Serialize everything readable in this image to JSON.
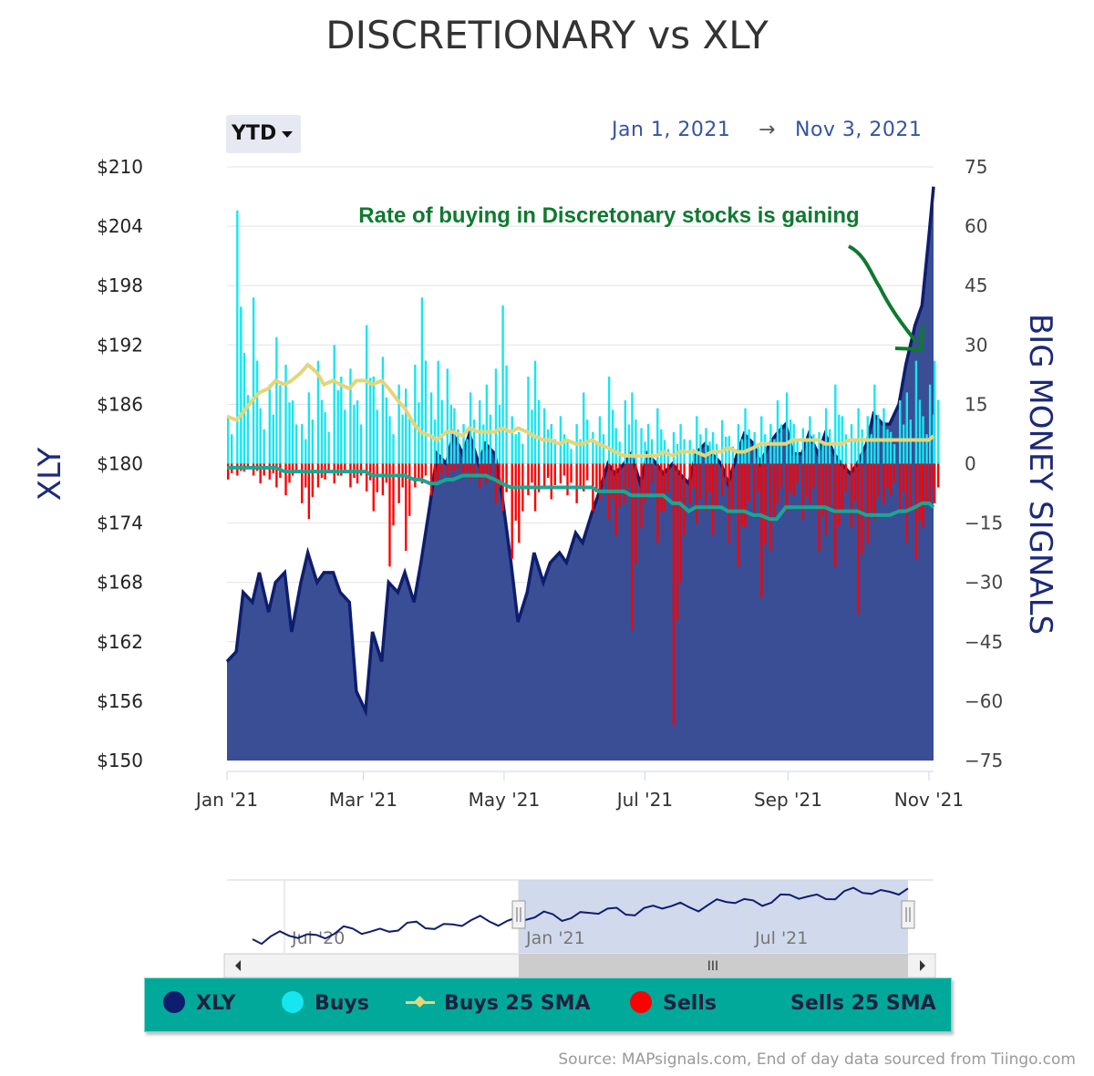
{
  "title": "DISCRETIONARY vs XLY",
  "range_button": {
    "label": "YTD"
  },
  "date_range": {
    "from": "Jan 1, 2021",
    "arrow": "→",
    "to": "Nov 3, 2021"
  },
  "annotation": "Rate of buying in Discretonary stocks is gaining",
  "navigator": {
    "labels": [
      "Jul '20",
      "Jan '21",
      "Jul '21"
    ],
    "scroll_label": "III"
  },
  "legend": [
    {
      "name": "XLY",
      "color": "#0f1d6e",
      "marker": "dot"
    },
    {
      "name": "Buys",
      "color": "#16e6f0",
      "marker": "dot"
    },
    {
      "name": "Buys 25 SMA",
      "color": "#e5d57a",
      "marker": "line"
    },
    {
      "name": "Sells",
      "color": "#ff0000",
      "marker": "dot"
    },
    {
      "name": "Sells 25 SMA",
      "color": "#1aa791",
      "marker": "none"
    }
  ],
  "source": "Source: MAPsignals.com, End of day data sourced from Tiingo.com",
  "chart_data": {
    "type": "area",
    "x_axis": {
      "ticks": [
        "Jan '21",
        "Mar '21",
        "May '21",
        "Jul '21",
        "Sep '21",
        "Nov '21"
      ],
      "range": [
        "2021-01-01",
        "2021-11-03"
      ]
    },
    "y_left": {
      "title": "XLY",
      "min": 150,
      "max": 210,
      "ticks": [
        "$210",
        "$204",
        "$198",
        "$192",
        "$186",
        "$180",
        "$174",
        "$168",
        "$162",
        "$156",
        "$150"
      ]
    },
    "y_right": {
      "title": "BIG MONEY SIGNALS",
      "min": -75,
      "max": 75,
      "ticks": [
        "75",
        "60",
        "45",
        "30",
        "15",
        "0",
        "−15",
        "−30",
        "−45",
        "−60",
        "−75"
      ]
    },
    "grid": true,
    "legend_position": "bottom",
    "series": [
      {
        "name": "XLY",
        "type": "area",
        "axis": "left",
        "color": "#0f1d6e",
        "fill": "#3a4e96",
        "x": [
          "2021-01-01",
          "2021-01-05",
          "2021-01-08",
          "2021-01-12",
          "2021-01-15",
          "2021-01-19",
          "2021-01-22",
          "2021-01-26",
          "2021-01-29",
          "2021-02-02",
          "2021-02-05",
          "2021-02-09",
          "2021-02-12",
          "2021-02-16",
          "2021-02-19",
          "2021-02-23",
          "2021-02-26",
          "2021-03-02",
          "2021-03-05",
          "2021-03-09",
          "2021-03-12",
          "2021-03-16",
          "2021-03-19",
          "2021-03-23",
          "2021-03-26",
          "2021-03-30",
          "2021-04-02",
          "2021-04-06",
          "2021-04-09",
          "2021-04-13",
          "2021-04-16",
          "2021-04-20",
          "2021-04-23",
          "2021-04-27",
          "2021-04-30",
          "2021-05-04",
          "2021-05-07",
          "2021-05-11",
          "2021-05-14",
          "2021-05-18",
          "2021-05-21",
          "2021-05-25",
          "2021-05-28",
          "2021-06-01",
          "2021-06-04",
          "2021-06-08",
          "2021-06-11",
          "2021-06-15",
          "2021-06-18",
          "2021-06-22",
          "2021-06-25",
          "2021-06-29",
          "2021-07-02",
          "2021-07-06",
          "2021-07-09",
          "2021-07-13",
          "2021-07-16",
          "2021-07-20",
          "2021-07-23",
          "2021-07-27",
          "2021-07-30",
          "2021-08-03",
          "2021-08-06",
          "2021-08-10",
          "2021-08-13",
          "2021-08-17",
          "2021-08-20",
          "2021-08-24",
          "2021-08-27",
          "2021-08-31",
          "2021-09-03",
          "2021-09-07",
          "2021-09-10",
          "2021-09-14",
          "2021-09-17",
          "2021-09-21",
          "2021-09-24",
          "2021-09-28",
          "2021-10-01",
          "2021-10-05",
          "2021-10-08",
          "2021-10-12",
          "2021-10-15",
          "2021-10-19",
          "2021-10-22",
          "2021-10-26",
          "2021-10-29",
          "2021-11-01",
          "2021-11-03"
        ],
        "values": [
          160,
          161,
          167,
          166,
          169,
          165,
          168,
          169,
          163,
          168,
          171,
          168,
          169,
          169,
          167,
          166,
          157,
          155,
          163,
          160,
          168,
          167,
          169,
          166,
          170,
          176,
          181,
          180,
          183,
          181,
          183,
          180,
          182,
          181,
          177,
          170,
          164,
          167,
          171,
          168,
          170,
          171,
          170,
          173,
          172,
          175,
          177,
          180,
          179,
          180,
          181,
          178,
          181,
          180,
          179,
          180,
          179,
          178,
          181,
          182,
          181,
          180,
          178,
          181,
          183,
          182,
          180,
          182,
          183,
          184,
          181,
          181,
          183,
          181,
          183,
          181,
          180,
          179,
          180,
          182,
          185,
          184,
          184,
          186,
          190,
          194,
          196,
          203,
          208
        ]
      },
      {
        "name": "Buys",
        "type": "column",
        "axis": "right",
        "color": "#16e6f0",
        "values": [
          12,
          64,
          28,
          42,
          14,
          20,
          32,
          25,
          16,
          10,
          18,
          26,
          13,
          30,
          22,
          24,
          16,
          35,
          22,
          27,
          12,
          20,
          19,
          25,
          42,
          18,
          26,
          24,
          14,
          10,
          18,
          16,
          20,
          24,
          40,
          12,
          8,
          22,
          26,
          14,
          10,
          12,
          6,
          10,
          18,
          8,
          12,
          22,
          9,
          16,
          18,
          9,
          10,
          14,
          6,
          8,
          10,
          6,
          12,
          9,
          8,
          11,
          7,
          10,
          14,
          8,
          12,
          10,
          16,
          18,
          10,
          9,
          12,
          8,
          14,
          20,
          12,
          10,
          14,
          12,
          20,
          14,
          8,
          16,
          18,
          26,
          12,
          20,
          26
        ]
      },
      {
        "name": "Buys 25 SMA",
        "type": "line",
        "axis": "right",
        "color": "#e5d57a",
        "values": [
          12,
          11,
          13,
          16,
          18,
          19,
          21,
          20,
          21,
          23,
          25,
          23,
          20,
          21,
          20,
          19,
          21,
          21,
          20,
          21,
          19,
          16,
          14,
          10,
          8,
          7,
          6,
          8,
          8,
          7,
          9,
          8,
          8,
          8,
          9,
          8,
          9,
          8,
          7,
          6,
          6,
          5,
          6,
          5,
          5,
          6,
          5,
          4,
          3,
          2,
          2,
          2,
          2,
          2,
          3,
          2,
          3,
          3,
          3,
          2,
          3,
          3,
          4,
          3,
          3,
          4,
          5,
          5,
          5,
          5,
          6,
          6,
          6,
          6,
          5,
          5,
          5,
          6,
          6,
          6,
          6,
          6,
          6,
          6,
          6,
          6,
          6,
          6,
          7
        ]
      },
      {
        "name": "Sells",
        "type": "column",
        "axis": "right",
        "color": "#ff0000",
        "values": [
          -4,
          -3,
          -2,
          -3,
          -5,
          -4,
          -6,
          -8,
          -3,
          -10,
          -14,
          -6,
          -4,
          -5,
          -3,
          -6,
          -5,
          -7,
          -12,
          -8,
          -26,
          -10,
          -22,
          -6,
          -5,
          -8,
          -4,
          -3,
          -2,
          -3,
          -4,
          -6,
          -5,
          -10,
          -12,
          -24,
          -20,
          -8,
          -12,
          -6,
          -9,
          -5,
          -8,
          -10,
          -7,
          -12,
          -9,
          -14,
          -18,
          -10,
          -42,
          -16,
          -8,
          -20,
          -12,
          -66,
          -30,
          -10,
          -15,
          -12,
          -18,
          -8,
          -20,
          -26,
          -16,
          -12,
          -34,
          -22,
          -10,
          -12,
          -8,
          -14,
          -10,
          -22,
          -18,
          -26,
          -12,
          -16,
          -38,
          -20,
          -14,
          -10,
          -8,
          -12,
          -20,
          -24,
          -16,
          -10,
          -10
        ]
      },
      {
        "name": "Sells 25 SMA",
        "type": "line",
        "axis": "right",
        "color": "#1aa791",
        "values": [
          -1,
          -1,
          -1,
          -1,
          -1,
          -1,
          -1,
          -2,
          -2,
          -2,
          -2,
          -2,
          -2,
          -2,
          -2,
          -2,
          -2,
          -2,
          -3,
          -3,
          -3,
          -3,
          -3,
          -4,
          -4,
          -5,
          -5,
          -4,
          -4,
          -3,
          -3,
          -3,
          -3,
          -4,
          -5,
          -6,
          -6,
          -6,
          -6,
          -6,
          -6,
          -6,
          -6,
          -6,
          -6,
          -6,
          -7,
          -7,
          -7,
          -7,
          -8,
          -8,
          -8,
          -8,
          -8,
          -10,
          -10,
          -12,
          -11,
          -11,
          -11,
          -11,
          -12,
          -12,
          -12,
          -13,
          -13,
          -14,
          -14,
          -11,
          -11,
          -11,
          -11,
          -11,
          -11,
          -12,
          -12,
          -12,
          -12,
          -13,
          -13,
          -13,
          -13,
          -12,
          -12,
          -11,
          -10,
          -10,
          -11
        ]
      }
    ]
  }
}
